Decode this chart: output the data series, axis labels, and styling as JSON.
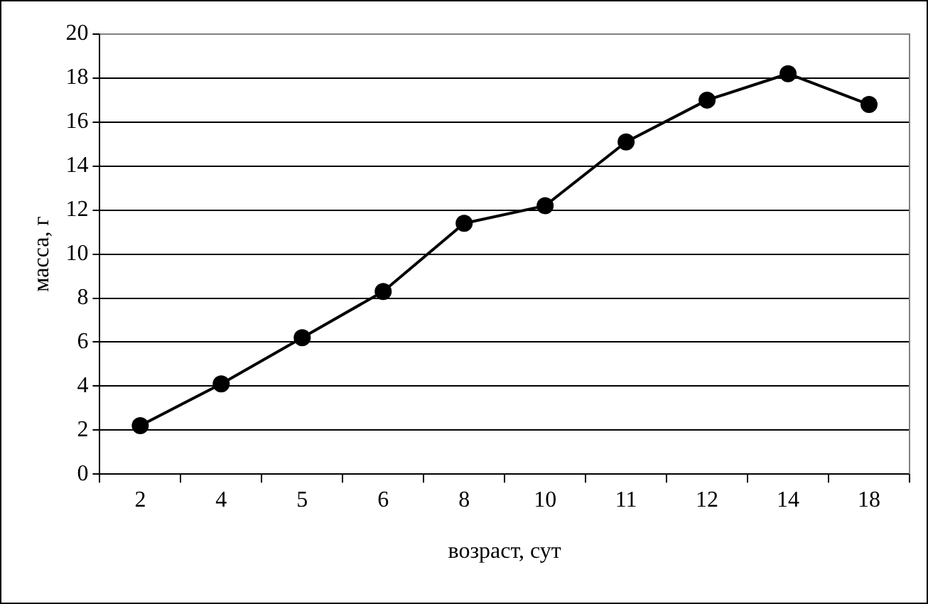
{
  "chart_data": {
    "type": "line",
    "xlabel": "возраст, сут",
    "ylabel": "масса, г",
    "categories": [
      "2",
      "4",
      "5",
      "6",
      "8",
      "10",
      "11",
      "12",
      "14",
      "18"
    ],
    "series": [
      {
        "color": "#000000",
        "values": [
          2.2,
          4.1,
          6.2,
          8.3,
          11.4,
          12.2,
          15.1,
          17.0,
          18.2,
          16.8
        ]
      }
    ],
    "ylim": [
      0,
      20
    ],
    "yticks": [
      0,
      2,
      4,
      6,
      8,
      10,
      12,
      14,
      16,
      18,
      20
    ],
    "grid": "y",
    "legend": false,
    "marker": "circle",
    "line_style": "solid"
  }
}
